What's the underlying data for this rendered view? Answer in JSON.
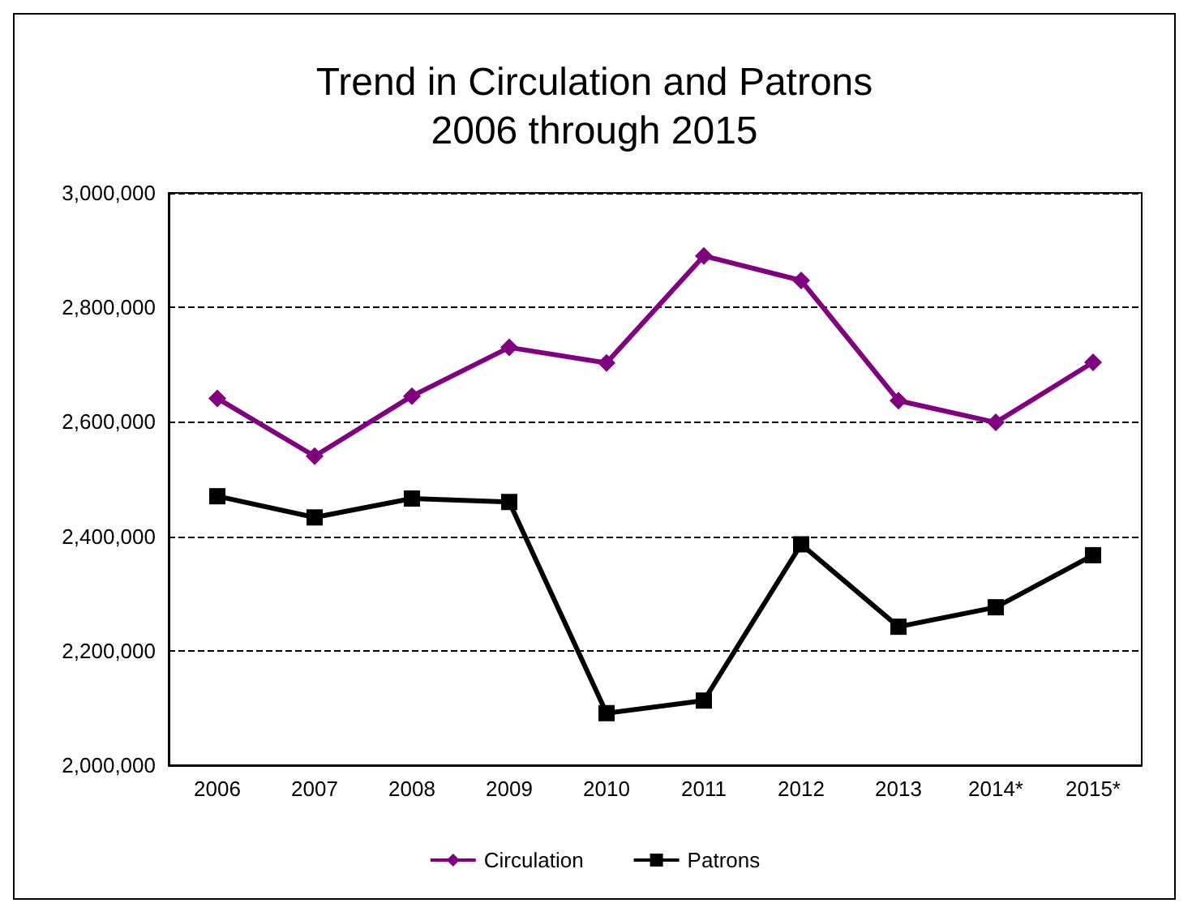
{
  "chart_data": {
    "type": "line",
    "title": "Trend in Circulation and Patrons\n2006 through 2015",
    "categories": [
      "2006",
      "2007",
      "2008",
      "2009",
      "2010",
      "2011",
      "2012",
      "2013",
      "2014*",
      "2015*"
    ],
    "series": [
      {
        "name": "Circulation",
        "color": "#800080",
        "marker": "diamond",
        "values": [
          2641000,
          2540000,
          2645000,
          2730000,
          2703000,
          2890000,
          2847000,
          2637000,
          2599000,
          2704000
        ]
      },
      {
        "name": "Patrons",
        "color": "#000000",
        "marker": "square",
        "values": [
          2470000,
          2433000,
          2466000,
          2460000,
          2091000,
          2113000,
          2386000,
          2242000,
          2276000,
          2367000
        ]
      }
    ],
    "ylim": [
      2000000,
      3000000
    ],
    "yticks": [
      {
        "value": 2000000,
        "label": "2,000,000"
      },
      {
        "value": 2200000,
        "label": "2,200,000"
      },
      {
        "value": 2400000,
        "label": "2,400,000"
      },
      {
        "value": 2600000,
        "label": "2,600,000"
      },
      {
        "value": 2800000,
        "label": "2,800,000"
      },
      {
        "value": 3000000,
        "label": "3,000,000"
      }
    ],
    "grid": "y",
    "legend": "bottom",
    "line_style": "solid"
  }
}
